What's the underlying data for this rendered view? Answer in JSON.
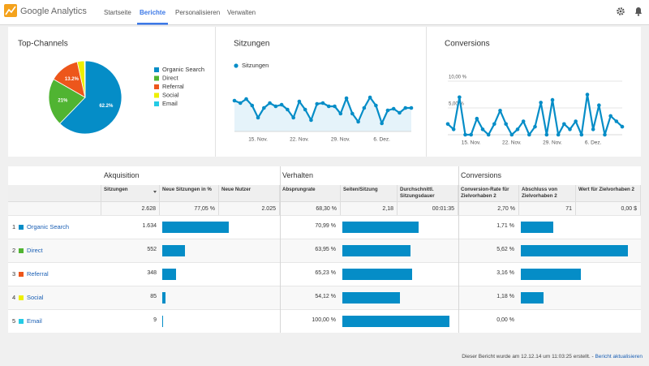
{
  "header": {
    "logo": "Google Analytics",
    "nav": [
      "Startseite",
      "Berichte",
      "Personalisieren",
      "Verwalten"
    ],
    "active_nav": 1
  },
  "chart_data": [
    {
      "type": "pie",
      "title": "Top-Channels",
      "categories": [
        "Organic Search",
        "Direct",
        "Referral",
        "Social",
        "Email"
      ],
      "values": [
        62.2,
        21,
        13.2,
        3.2,
        0.3
      ],
      "value_labels": [
        "62.2%",
        "21%",
        "13.2%",
        null,
        null
      ],
      "colors": [
        "#058dc7",
        "#50b432",
        "#ed561b",
        "#edef00",
        "#24cbe5"
      ]
    },
    {
      "type": "line",
      "title": "Sitzungen",
      "area": true,
      "categories": [
        null,
        null,
        null,
        null,
        "15. Nov.",
        null,
        null,
        null,
        null,
        null,
        null,
        "22. Nov.",
        null,
        null,
        null,
        null,
        null,
        null,
        "29. Nov.",
        null,
        null,
        null,
        null,
        null,
        null,
        "6. Dez.",
        null,
        null,
        null,
        null,
        null
      ],
      "series": [
        {
          "name": "Sitzungen",
          "color": "#058dc7",
          "values": [
            76,
            70,
            80,
            64,
            34,
            58,
            70,
            62,
            66,
            54,
            34,
            74,
            54,
            28,
            68,
            70,
            62,
            62,
            44,
            82,
            44,
            24,
            58,
            84,
            64,
            20,
            52,
            56,
            46,
            58,
            58
          ]
        }
      ],
      "ylim": [
        0,
        124
      ]
    },
    {
      "type": "line",
      "title": "Conversions",
      "area": false,
      "categories": [
        null,
        null,
        null,
        null,
        "15. Nov.",
        null,
        null,
        null,
        null,
        null,
        null,
        "22. Nov.",
        null,
        null,
        null,
        null,
        null,
        null,
        "29. Nov.",
        null,
        null,
        null,
        null,
        null,
        null,
        "6. Dez.",
        null,
        null,
        null,
        null,
        null
      ],
      "series": [
        {
          "color": "#058dc7",
          "values": [
            2,
            1,
            7,
            0,
            0,
            3,
            1,
            0,
            2,
            4.5,
            2,
            0,
            1,
            2.5,
            0,
            1.5,
            6,
            0,
            6.5,
            0,
            2,
            1,
            2.5,
            0,
            7.5,
            1,
            5.5,
            0,
            3.5,
            2.5,
            1.5
          ]
        }
      ],
      "ylim": [
        0,
        10
      ],
      "yticks": [
        {
          "value": 10,
          "label": "10,00 %"
        },
        {
          "value": 5,
          "label": "5,00 %"
        }
      ],
      "grid": true
    }
  ],
  "table": {
    "groups": [
      "Akquisition",
      "Verhalten",
      "Conversions"
    ],
    "columns": [
      "Sitzungen",
      "Neue Sitzungen in %",
      "Neue Nutzer",
      "Absprungrate",
      "Seiten/Sitzung",
      "Durchschnittl. Sitzungsdauer",
      "Conversion-Rate für Zielvorhaben 2",
      "Abschluss von Zielvorhaben 2",
      "Wert für Zielvorhaben 2"
    ],
    "totals": [
      {
        "value": 2628,
        "label": "2.628"
      },
      "77,05 %",
      "2.025",
      "68,30 %",
      "2,18",
      "00:01:35",
      "2,70 %",
      "71",
      "0,00 $"
    ],
    "rows": [
      {
        "rank": 1,
        "name": "Organic Search",
        "color": "#058dc7",
        "sessions": {
          "value": 1634,
          "label": "1.634"
        },
        "bounce_rate": {
          "value": 70.99,
          "label": "70,99 %"
        },
        "conversion_rate": {
          "value": 1.71,
          "label": "1,71 %"
        }
      },
      {
        "rank": 2,
        "name": "Direct",
        "color": "#50b432",
        "sessions": {
          "value": 552,
          "label": "552"
        },
        "bounce_rate": {
          "value": 63.95,
          "label": "63,95 %"
        },
        "conversion_rate": {
          "value": 5.62,
          "label": "5,62 %"
        }
      },
      {
        "rank": 3,
        "name": "Referral",
        "color": "#ed561b",
        "sessions": {
          "value": 348,
          "label": "348"
        },
        "bounce_rate": {
          "value": 65.23,
          "label": "65,23 %"
        },
        "conversion_rate": {
          "value": 3.16,
          "label": "3,16 %"
        }
      },
      {
        "rank": 4,
        "name": "Social",
        "color": "#edef00",
        "sessions": {
          "value": 85,
          "label": "85"
        },
        "bounce_rate": {
          "value": 54.12,
          "label": "54,12 %"
        },
        "conversion_rate": {
          "value": 1.18,
          "label": "1,18 %"
        }
      },
      {
        "rank": 5,
        "name": "Email",
        "color": "#24cbe5",
        "sessions": {
          "value": 9,
          "label": "9"
        },
        "bounce_rate": {
          "value": 100,
          "label": "100,00 %"
        },
        "conversion_rate": {
          "value": 0,
          "label": "0,00 %"
        }
      }
    ],
    "bar_color": "#058dc7"
  },
  "footer": {
    "text": "Dieser Bericht wurde am 12.12.14 um 11:03:25 erstellt. -",
    "link": "Bericht aktualisieren"
  }
}
